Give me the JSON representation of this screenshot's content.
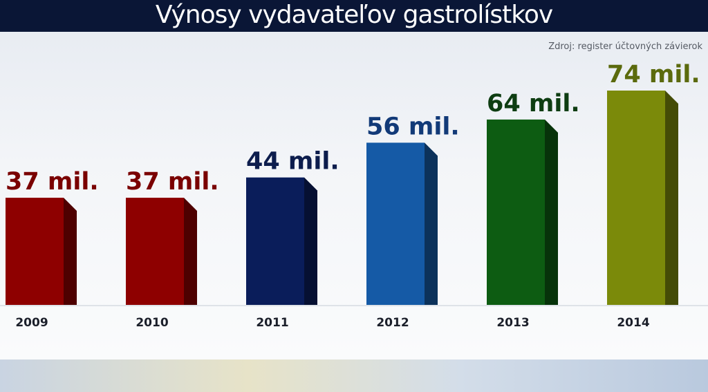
{
  "title": "Výnosy vydavateľov gastrolístkov",
  "source": "Zdroj: register účtovných závierok",
  "chart_data": {
    "type": "bar",
    "title": "Výnosy vydavateľov gastrolístkov",
    "xlabel": "",
    "ylabel": "",
    "categories": [
      "2009",
      "2010",
      "2011",
      "2012",
      "2013",
      "2014"
    ],
    "values": [
      37,
      37,
      44,
      56,
      64,
      74
    ],
    "value_labels": [
      "37 mil.",
      "37 mil.",
      "44 mil.",
      "56 mil.",
      "64 mil.",
      "74 mil."
    ],
    "ylim": [
      0,
      74
    ],
    "grid": false,
    "legend": "none",
    "bar_colors": [
      "#8e0000",
      "#8e0000",
      "#0a1d5a",
      "#155aa6",
      "#0d5c12",
      "#7b8a0a"
    ],
    "label_colors": [
      "#7a0000",
      "#7a0000",
      "#0d1d4d",
      "#123a78",
      "#0e3d12",
      "#5b6a0d"
    ]
  }
}
